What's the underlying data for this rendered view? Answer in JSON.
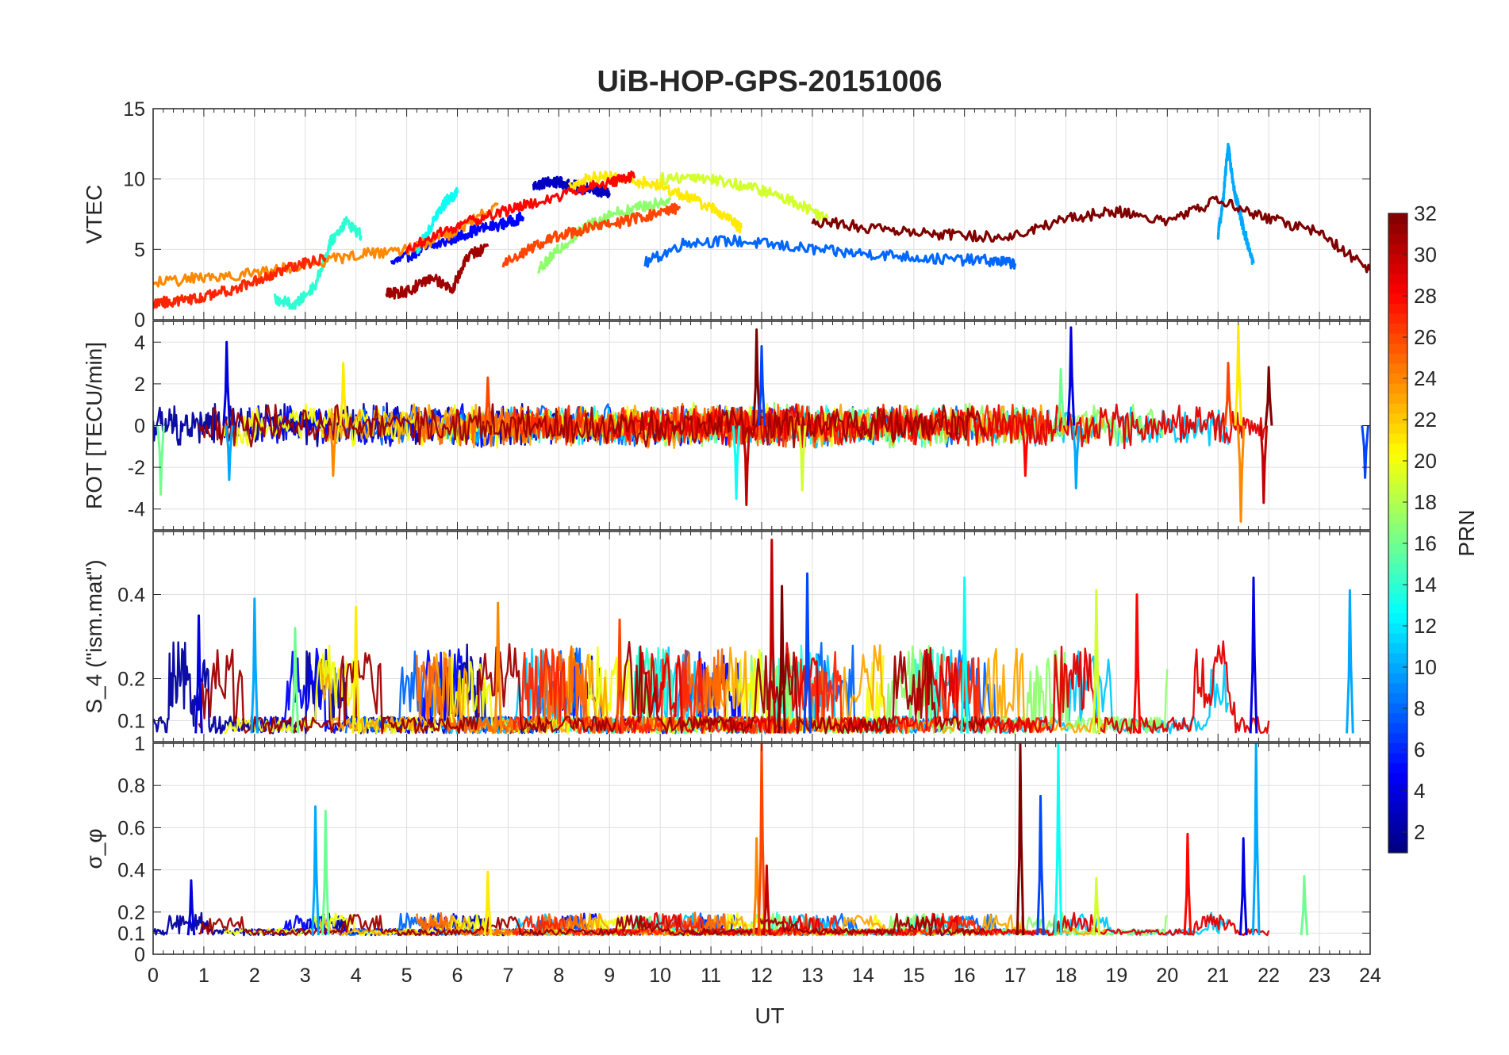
{
  "figure": {
    "title": "UiB-HOP-GPS-20151006",
    "xlabel": "UT"
  },
  "colormap": "jet",
  "chart_data": [
    {
      "type": "line",
      "panel": "vtec",
      "ylabel": "VTEC",
      "xlim": [
        0,
        24
      ],
      "ylim": [
        0,
        15
      ],
      "yticks": [
        0,
        5,
        10,
        15
      ],
      "grid": true,
      "series_summary": "many PRN traces, roughly 2-10 TECU, peak about 12.5 near 21.2 UT",
      "series": [
        {
          "prn": 3,
          "x": [
            7.5,
            7.8,
            8.1,
            8.4,
            8.7,
            9.0
          ],
          "y": [
            9.5,
            9.8,
            9.7,
            9.4,
            9.2,
            9.0
          ]
        },
        {
          "prn": 5,
          "x": [
            4.7,
            5.2,
            5.8,
            6.3,
            6.9,
            7.3
          ],
          "y": [
            4.0,
            4.8,
            5.6,
            6.3,
            6.8,
            7.3
          ]
        },
        {
          "prn": 8,
          "x": [
            9.7,
            10.5,
            11.5,
            12.5,
            13.5,
            14.5,
            15.5,
            16.5,
            17.0
          ],
          "y": [
            4.0,
            5.5,
            5.6,
            5.2,
            4.8,
            4.6,
            4.3,
            4.2,
            4.0
          ]
        },
        {
          "prn": 10,
          "x": [
            21.0,
            21.1,
            21.2,
            21.3,
            21.4,
            21.5,
            21.7
          ],
          "y": [
            6.0,
            8.5,
            12.5,
            9.5,
            8.0,
            6.5,
            4.0
          ]
        },
        {
          "prn": 13,
          "x": [
            5.2,
            5.4,
            5.6,
            5.8,
            6.0
          ],
          "y": [
            5.0,
            6.0,
            7.5,
            8.5,
            9.0
          ]
        },
        {
          "prn": 14,
          "x": [
            2.4,
            2.8,
            3.2,
            3.5,
            3.8,
            4.1
          ],
          "y": [
            1.5,
            1.0,
            2.5,
            5.5,
            7.0,
            6.0
          ]
        },
        {
          "prn": 17,
          "x": [
            7.6,
            8.0,
            8.5,
            9.0,
            9.6,
            10.2
          ],
          "y": [
            3.5,
            5.0,
            6.5,
            7.5,
            8.0,
            8.5
          ]
        },
        {
          "prn": 19,
          "x": [
            10.0,
            10.7,
            11.3,
            12.0,
            12.7,
            13.3
          ],
          "y": [
            10.0,
            10.2,
            9.8,
            9.2,
            8.3,
            7.2
          ]
        },
        {
          "prn": 21,
          "x": [
            8.2,
            8.7,
            9.3,
            9.9,
            10.5,
            11.1,
            11.6
          ],
          "y": [
            9.5,
            10.2,
            10.0,
            9.6,
            8.8,
            7.8,
            6.5
          ]
        },
        {
          "prn": 24,
          "x": [
            0.0,
            1.0,
            2.0,
            3.0,
            4.0,
            5.0,
            6.0,
            6.8
          ],
          "y": [
            2.6,
            3.0,
            3.3,
            3.9,
            4.6,
            5.0,
            6.3,
            8.3
          ]
        },
        {
          "prn": 26,
          "x": [
            6.9,
            7.5,
            8.0,
            8.6,
            9.3,
            9.9,
            10.4
          ],
          "y": [
            4.0,
            5.2,
            6.0,
            6.5,
            7.0,
            7.5,
            8.0
          ]
        },
        {
          "prn": 27,
          "x": [
            0.0,
            0.5,
            1.0,
            1.6,
            2.2,
            2.8,
            3.4
          ],
          "y": [
            1.2,
            1.3,
            1.6,
            2.2,
            3.0,
            3.8,
            4.4
          ]
        },
        {
          "prn": 28,
          "x": [
            5.0,
            5.8,
            6.6,
            7.4,
            8.2,
            9.0,
            9.5
          ],
          "y": [
            5.0,
            6.4,
            7.4,
            8.2,
            9.0,
            9.8,
            10.2
          ]
        },
        {
          "prn": 31,
          "x": [
            4.6,
            5.0,
            5.5,
            5.9,
            6.2,
            6.6
          ],
          "y": [
            1.8,
            2.0,
            3.0,
            2.2,
            4.5,
            5.2
          ]
        },
        {
          "prn": 32,
          "x": [
            13.0,
            14.0,
            15.0,
            16.0,
            17.0,
            18.0,
            19.0,
            20.0,
            21.0,
            22.0,
            23.0,
            24.0
          ],
          "y": [
            7.0,
            6.6,
            6.3,
            5.9,
            6.0,
            7.2,
            7.7,
            7.0,
            8.5,
            7.2,
            6.2,
            3.5
          ]
        }
      ]
    },
    {
      "type": "line",
      "panel": "rot",
      "ylabel": "ROT [TECU/min]",
      "xlim": [
        0,
        24
      ],
      "ylim": [
        -5,
        5
      ],
      "yticks": [
        -4,
        -2,
        0,
        2,
        4
      ],
      "grid": true,
      "series_summary": "noise around 0 TECU/min with spikes; max about 4.7 near 18.1 and 21.4 UT, min about -4.6 near 21.4 UT",
      "spikes": [
        {
          "x": 1.45,
          "y": 4.0
        },
        {
          "x": 1.5,
          "y": -2.6
        },
        {
          "x": 0.15,
          "y": -3.3
        },
        {
          "x": 3.75,
          "y": 3.0
        },
        {
          "x": 3.55,
          "y": -2.4
        },
        {
          "x": 6.6,
          "y": 2.3
        },
        {
          "x": 11.7,
          "y": -3.8
        },
        {
          "x": 11.9,
          "y": 4.6
        },
        {
          "x": 12.0,
          "y": 3.8
        },
        {
          "x": 11.5,
          "y": -3.5
        },
        {
          "x": 12.8,
          "y": -3.1
        },
        {
          "x": 17.2,
          "y": -2.4
        },
        {
          "x": 18.1,
          "y": 4.7
        },
        {
          "x": 18.2,
          "y": -3.0
        },
        {
          "x": 17.9,
          "y": 2.7
        },
        {
          "x": 21.4,
          "y": 4.8
        },
        {
          "x": 21.45,
          "y": -4.6
        },
        {
          "x": 21.2,
          "y": 3.0
        },
        {
          "x": 21.9,
          "y": -3.7
        },
        {
          "x": 22.0,
          "y": 2.8
        },
        {
          "x": 23.9,
          "y": -2.5
        }
      ]
    },
    {
      "type": "line",
      "panel": "s4",
      "ylabel": "S_4 (\"ism.mat\")",
      "xlim": [
        0,
        24
      ],
      "ylim": [
        0.05,
        0.55
      ],
      "yticks": [
        0.1,
        0.2,
        0.4
      ],
      "grid": true,
      "series_summary": "baseline about 0.06-0.08 with bursts to 0.2-0.4; maximum about 0.53 near 12.2 UT",
      "spikes": [
        {
          "x": 0.9,
          "y": 0.35
        },
        {
          "x": 2.0,
          "y": 0.39
        },
        {
          "x": 2.8,
          "y": 0.32
        },
        {
          "x": 4.0,
          "y": 0.37
        },
        {
          "x": 6.8,
          "y": 0.38
        },
        {
          "x": 9.2,
          "y": 0.34
        },
        {
          "x": 12.2,
          "y": 0.53
        },
        {
          "x": 12.4,
          "y": 0.42
        },
        {
          "x": 12.9,
          "y": 0.45
        },
        {
          "x": 16.0,
          "y": 0.44
        },
        {
          "x": 18.6,
          "y": 0.41
        },
        {
          "x": 19.4,
          "y": 0.4
        },
        {
          "x": 21.7,
          "y": 0.44
        },
        {
          "x": 23.6,
          "y": 0.41
        }
      ]
    },
    {
      "type": "line",
      "panel": "sigma_phi",
      "ylabel": "σ_φ",
      "xlim": [
        0,
        24
      ],
      "ylim": [
        0,
        1
      ],
      "yticks": [
        0,
        0.1,
        0.2,
        0.4,
        0.6,
        0.8,
        1
      ],
      "grid": true,
      "series_summary": "baseline about 0.08-0.12 with bursts; saturates at 1 near 17.2, 17.8-17.9 and 21.6-21.8 UT",
      "spikes": [
        {
          "x": 0.75,
          "y": 0.35
        },
        {
          "x": 3.2,
          "y": 0.7
        },
        {
          "x": 3.4,
          "y": 0.68
        },
        {
          "x": 6.6,
          "y": 0.39
        },
        {
          "x": 11.9,
          "y": 0.55
        },
        {
          "x": 12.0,
          "y": 1.0
        },
        {
          "x": 12.1,
          "y": 0.42
        },
        {
          "x": 17.1,
          "y": 1.0
        },
        {
          "x": 17.5,
          "y": 0.75
        },
        {
          "x": 17.85,
          "y": 1.0
        },
        {
          "x": 18.6,
          "y": 0.36
        },
        {
          "x": 20.4,
          "y": 0.57
        },
        {
          "x": 21.5,
          "y": 0.55
        },
        {
          "x": 21.75,
          "y": 1.0
        },
        {
          "x": 22.7,
          "y": 0.37
        }
      ]
    }
  ],
  "colorbar": {
    "label": "PRN",
    "ticks": [
      2,
      4,
      6,
      8,
      10,
      12,
      14,
      16,
      18,
      20,
      22,
      24,
      26,
      28,
      30,
      32
    ],
    "range": [
      1,
      32
    ]
  },
  "xticks": [
    0,
    1,
    2,
    3,
    4,
    5,
    6,
    7,
    8,
    9,
    10,
    11,
    12,
    13,
    14,
    15,
    16,
    17,
    18,
    19,
    20,
    21,
    22,
    23,
    24
  ]
}
